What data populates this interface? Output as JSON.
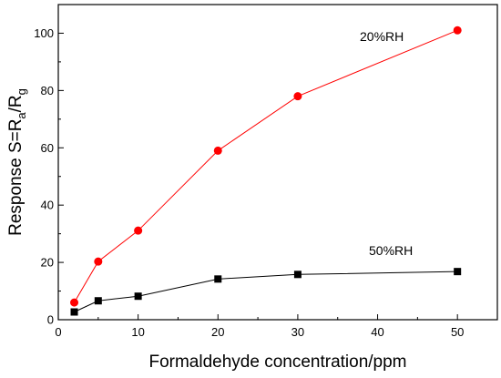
{
  "chart_data": {
    "type": "line",
    "xlabel": "Formaldehyde concentration/ppm",
    "ylabel": {
      "main": "Response S=R",
      "sub1": "a",
      "mid": "/R",
      "sub2": "g"
    },
    "xlim": [
      0,
      55
    ],
    "ylim": [
      0,
      110
    ],
    "xticks": [
      0,
      10,
      20,
      30,
      40,
      50
    ],
    "yticks": [
      0,
      20,
      40,
      60,
      80,
      100
    ],
    "grid": false,
    "series": [
      {
        "name": "20%RH",
        "color": "#ff0000",
        "marker": "circle",
        "x": [
          2,
          5,
          10,
          20,
          30,
          50
        ],
        "y": [
          6,
          20.3,
          31.1,
          59,
          78,
          101
        ]
      },
      {
        "name": "50%RH",
        "color": "#000000",
        "marker": "square",
        "x": [
          2,
          5,
          10,
          20,
          30,
          50
        ],
        "y": [
          2.7,
          6.6,
          8.2,
          14.2,
          15.8,
          16.8
        ]
      }
    ],
    "annotations": [
      {
        "text": "20%RH",
        "series": 0
      },
      {
        "text": "50%RH",
        "series": 1
      }
    ]
  }
}
